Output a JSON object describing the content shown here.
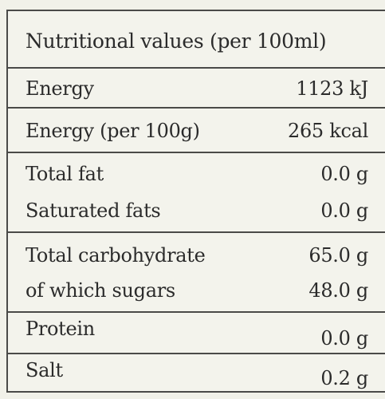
{
  "header": {
    "title": "Nutritional values (per 100ml)"
  },
  "rows": [
    {
      "items": [
        {
          "label": "Energy",
          "value": "1123 kJ"
        }
      ]
    },
    {
      "items": [
        {
          "label": "Energy (per 100g)",
          "value": "265 kcal"
        }
      ]
    },
    {
      "items": [
        {
          "label": "Total fat",
          "value": "0.0 g"
        },
        {
          "label": "Saturated fats",
          "value": "0.0 g"
        }
      ]
    },
    {
      "items": [
        {
          "label": "Total carbohydrate",
          "value": "65.0 g"
        },
        {
          "label": "of which sugars",
          "value": "48.0 g"
        }
      ]
    },
    {
      "items": [
        {
          "label": "Protein",
          "value": "0.0 g"
        }
      ]
    },
    {
      "items": [
        {
          "label": "Salt",
          "value": "0.2 g"
        }
      ]
    }
  ]
}
